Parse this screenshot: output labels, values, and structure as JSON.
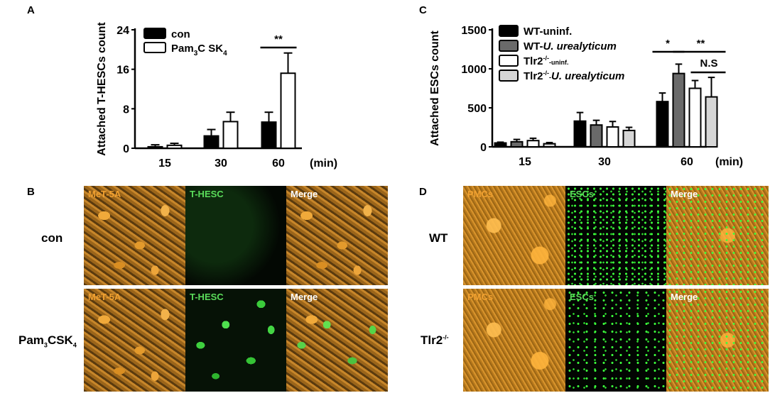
{
  "panels": {
    "A": {
      "letter": "A"
    },
    "B": {
      "letter": "B"
    },
    "C": {
      "letter": "C"
    },
    "D": {
      "letter": "D"
    }
  },
  "chart_data": [
    {
      "panel": "A",
      "type": "bar",
      "ylabel": "Attached T-HESCs count",
      "xunit": "(min)",
      "categories": [
        "15",
        "30",
        "60"
      ],
      "yticks": [
        0,
        8,
        16,
        24
      ],
      "ylim": [
        0,
        24
      ],
      "legend": [
        {
          "name": "con",
          "fill": "#000000"
        },
        {
          "name": "Pam3CSK4",
          "fill": "#ffffff",
          "html_main": "Pam",
          "html_sub1": "3",
          "html_mid": "C SK",
          "html_sub2": "4"
        }
      ],
      "series": [
        {
          "name": "con",
          "fill": "#000000",
          "values": [
            0.3,
            2.5,
            5.3
          ],
          "errors": [
            0.4,
            1.3,
            2.0
          ]
        },
        {
          "name": "Pam3CSK4",
          "fill": "#ffffff",
          "values": [
            0.6,
            5.4,
            15.2
          ],
          "errors": [
            0.4,
            1.9,
            4.1
          ]
        }
      ],
      "annotations": [
        {
          "text": "**",
          "category": "60"
        }
      ]
    },
    {
      "panel": "C",
      "type": "bar",
      "ylabel": "Attached ESCs count",
      "xunit": "(min)",
      "categories": [
        "15",
        "30",
        "60"
      ],
      "yticks": [
        0,
        500,
        1000,
        1500
      ],
      "ylim": [
        0,
        1500
      ],
      "legend": [
        {
          "name": "WT-uninf.",
          "fill": "#000000"
        },
        {
          "name": "WT-U. urealyticum",
          "fill": "#6a6a6a"
        },
        {
          "name": "Tlr2-/--uninf.",
          "fill": "#ffffff"
        },
        {
          "name": "Tlr2-/--U. urealyticum",
          "fill": "#d6d6d6"
        }
      ],
      "series": [
        {
          "name": "WT-uninf.",
          "fill": "#000000",
          "values": [
            50,
            330,
            580
          ],
          "errors": [
            10,
            110,
            110
          ]
        },
        {
          "name": "WT-U. urealyticum",
          "fill": "#6a6a6a",
          "values": [
            65,
            280,
            940
          ],
          "errors": [
            30,
            60,
            120
          ]
        },
        {
          "name": "Tlr2-/--uninf.",
          "fill": "#ffffff",
          "values": [
            80,
            255,
            750
          ],
          "errors": [
            30,
            70,
            100
          ]
        },
        {
          "name": "Tlr2-/--U. urealyticum",
          "fill": "#d6d6d6",
          "values": [
            40,
            210,
            640
          ],
          "errors": [
            15,
            40,
            250
          ]
        }
      ],
      "annotations": [
        {
          "text": "*",
          "between": "WT-uninf. vs WT-U. urealyticum"
        },
        {
          "text": "**",
          "between": "WT-U. urealyticum vs Tlr2-/--U. urealyticum"
        },
        {
          "text": "N.S",
          "between": "Tlr2-/--uninf. vs Tlr2-/--U. urealyticum"
        }
      ]
    }
  ],
  "micro_B": {
    "row_labels": [
      {
        "main": "con",
        "sub": ""
      },
      {
        "main": "Pam",
        "sub1": "3",
        "mid": "CSK",
        "sub2": "4"
      }
    ],
    "channels": [
      "MeT-5A",
      "T-HESC",
      "Merge"
    ]
  },
  "micro_D": {
    "row_labels": [
      {
        "main": "WT",
        "sup": ""
      },
      {
        "main": "Tlr2",
        "sup": "-/-"
      }
    ],
    "channels": [
      "PMCs",
      "ESCs",
      "Merge"
    ]
  },
  "colors": {
    "label_orange": "#f0a030",
    "label_green": "#5adc5a",
    "label_white": "#ffffff"
  }
}
